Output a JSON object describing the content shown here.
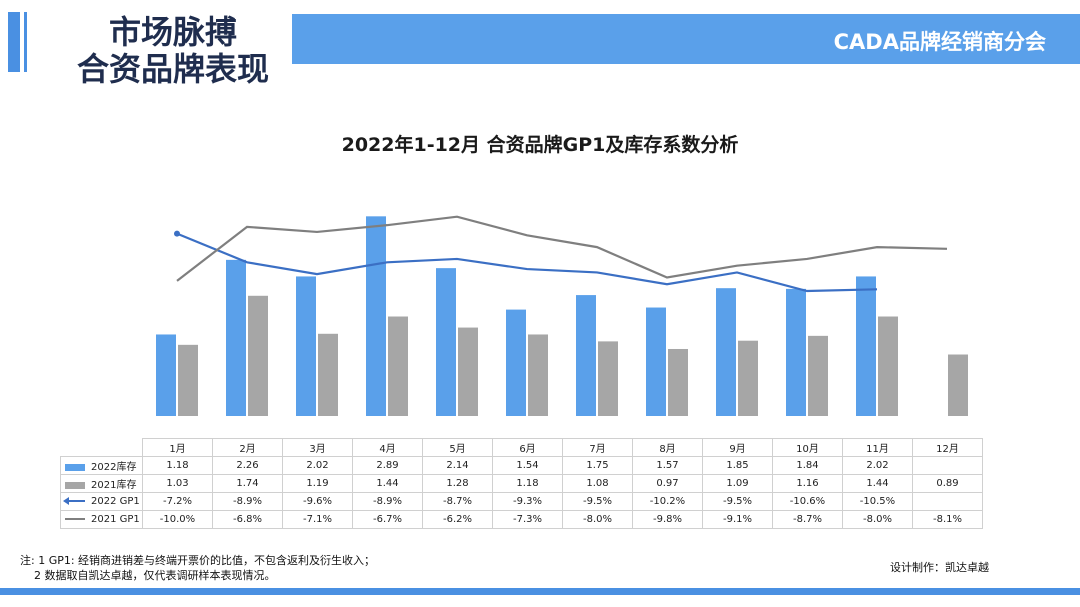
{
  "header": {
    "title_line1": "市场脉搏",
    "title_line2": "合资品牌表现",
    "brand": "CADA品牌经销商分会"
  },
  "colors": {
    "accent": "#4a90e2",
    "bar_2022": "#5aa0ea",
    "bar_2021": "#a6a6a6",
    "line_2022": "#3b6fc4",
    "line_2021": "#7f7f7f"
  },
  "chart_data": {
    "type": "bar+line",
    "title": "2022年1-12月 合资品牌GP1及库存系数分析",
    "categories": [
      "1月",
      "2月",
      "3月",
      "4月",
      "5月",
      "6月",
      "7月",
      "8月",
      "9月",
      "10月",
      "11月",
      "12月"
    ],
    "series": [
      {
        "name": "2022库存",
        "kind": "bar",
        "axis": "inventory",
        "values": [
          1.18,
          2.26,
          2.02,
          2.89,
          2.14,
          1.54,
          1.75,
          1.57,
          1.85,
          1.84,
          2.02,
          null
        ],
        "labels": [
          "1.18",
          "2.26",
          "2.02",
          "2.89",
          "2.14",
          "1.54",
          "1.75",
          "1.57",
          "1.85",
          "1.84",
          "2.02",
          ""
        ]
      },
      {
        "name": "2021库存",
        "kind": "bar",
        "axis": "inventory",
        "values": [
          1.03,
          1.74,
          1.19,
          1.44,
          1.28,
          1.18,
          1.08,
          0.97,
          1.09,
          1.16,
          1.44,
          0.89
        ],
        "labels": [
          "1.03",
          "1.74",
          "1.19",
          "1.44",
          "1.28",
          "1.18",
          "1.08",
          "0.97",
          "1.09",
          "1.16",
          "1.44",
          "0.89"
        ]
      },
      {
        "name": "2022 GP1",
        "kind": "line",
        "axis": "gp1",
        "values": [
          -7.2,
          -8.9,
          -9.6,
          -8.9,
          -8.7,
          -9.3,
          -9.5,
          -10.2,
          -9.5,
          -10.6,
          -10.5,
          null
        ],
        "labels": [
          "-7.2%",
          "-8.9%",
          "-9.6%",
          "-8.9%",
          "-8.7%",
          "-9.3%",
          "-9.5%",
          "-10.2%",
          "-9.5%",
          "-10.6%",
          "-10.5%",
          ""
        ]
      },
      {
        "name": "2021 GP1",
        "kind": "line",
        "axis": "gp1",
        "values": [
          -10.0,
          -6.8,
          -7.1,
          -6.7,
          -6.2,
          -7.3,
          -8.0,
          -9.8,
          -9.1,
          -8.7,
          -8.0,
          -8.1
        ],
        "labels": [
          "-10.0%",
          "-6.8%",
          "-7.1%",
          "-6.7%",
          "-6.2%",
          "-7.3%",
          "-8.0%",
          "-9.8%",
          "-9.1%",
          "-8.7%",
          "-8.0%",
          "-8.1%"
        ]
      }
    ],
    "inventory_range": [
      0,
      3.3
    ],
    "gp1_range": [
      -18,
      -4.5
    ],
    "grid": false,
    "legend": "table-left"
  },
  "footnote": {
    "line1": "注: 1 GP1: 经销商进销差与终端开票价的比值，不包含返利及衍生收入；",
    "line2": "2 数据取自凯达卓越，仅代表调研样本表现情况。"
  },
  "credit": "设计制作：凯达卓越"
}
